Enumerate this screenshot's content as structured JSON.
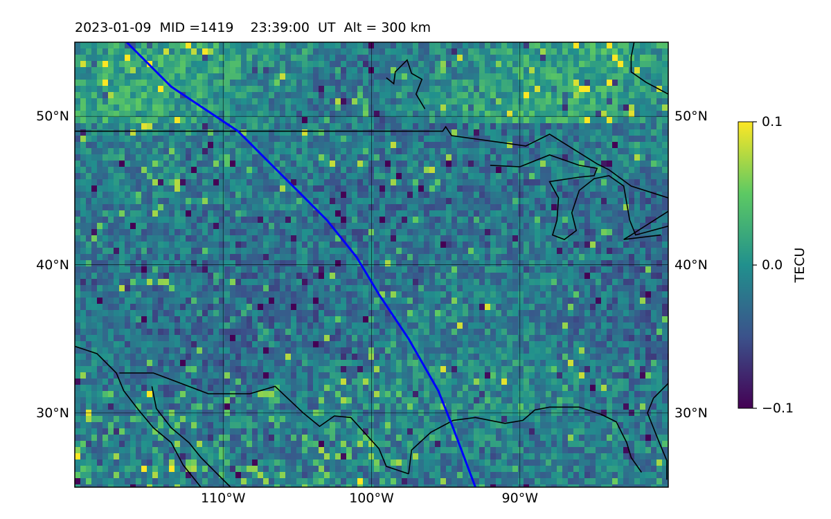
{
  "title": "2023-01-09  MID =1419    23:39:00  UT  Alt = 300 km",
  "map": {
    "lon_range": [
      -120,
      -80
    ],
    "lat_range": [
      25,
      55
    ],
    "grid": true,
    "lon_ticks": [
      {
        "value": -110,
        "label": "110°W"
      },
      {
        "value": -100,
        "label": "100°W"
      },
      {
        "value": -90,
        "label": "90°W"
      }
    ],
    "lat_ticks": [
      {
        "value": 50,
        "label": "50°N"
      },
      {
        "value": 40,
        "label": "40°N"
      },
      {
        "value": 30,
        "label": "30°N"
      }
    ],
    "field": "TEC perturbation",
    "colormap": "viridis",
    "satellite_track": {
      "color": "#0000ff",
      "points": [
        [
          -116.5,
          55
        ],
        [
          -113.5,
          52
        ],
        [
          -109,
          49
        ],
        [
          -107,
          47
        ],
        [
          -105,
          45
        ],
        [
          -103,
          43
        ],
        [
          -101,
          40.5
        ],
        [
          -99.5,
          38
        ],
        [
          -97.5,
          35
        ],
        [
          -95.5,
          31.5
        ],
        [
          -94.5,
          29
        ],
        [
          -93,
          25
        ]
      ]
    },
    "coastline_color": "#000000"
  },
  "colorbar": {
    "label": "TECU",
    "range": [
      -0.1,
      0.1
    ],
    "ticks": [
      {
        "value": 0.1,
        "label": "0.1"
      },
      {
        "value": 0.0,
        "label": "0.0"
      },
      {
        "value": -0.1,
        "label": "−0.1"
      }
    ]
  }
}
